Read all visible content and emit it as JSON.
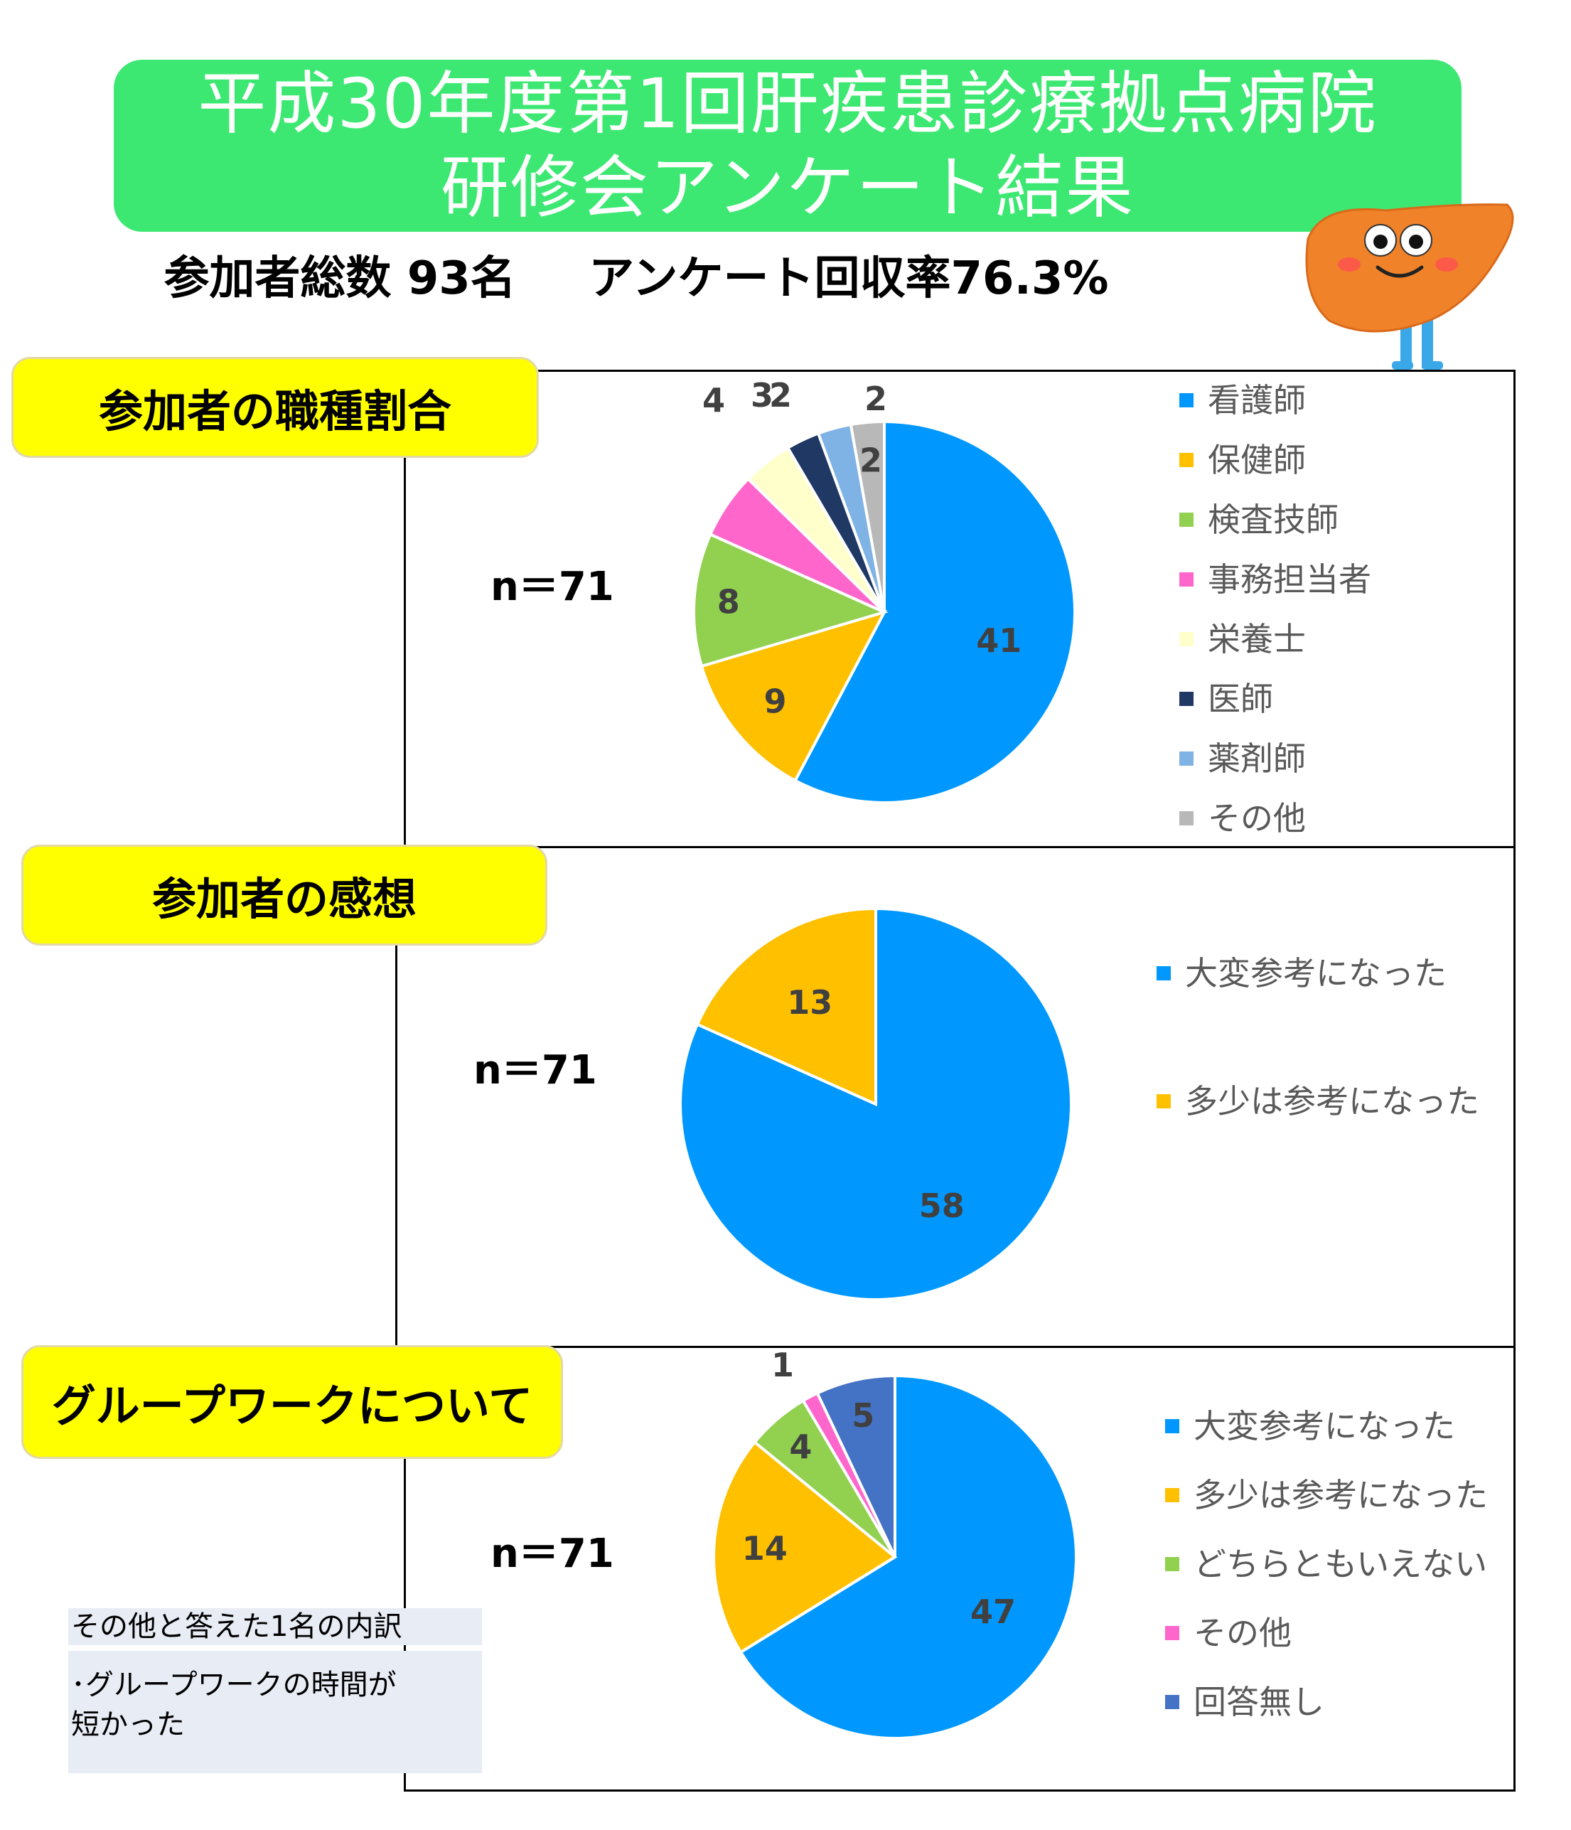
{
  "header": {
    "title_line1": "平成30年度第1回肝疾患診療拠点病院",
    "title_line2": "研修会アンケート結果",
    "participants": "参加者総数 93名",
    "response_rate": "アンケート回収率76.3%"
  },
  "sections": [
    {
      "label": "参加者の職種割合",
      "n": "n＝71"
    },
    {
      "label": "参加者の感想",
      "n": "n＝71"
    },
    {
      "label": "グループワークについて",
      "n": "n＝71"
    }
  ],
  "note": {
    "heading": "その他と答えた1名の内訳",
    "line1": "･グループワークの時間が",
    "line2": "短かった"
  },
  "chart_data": [
    {
      "type": "pie",
      "title": "参加者の職種割合",
      "categories": [
        "看護師",
        "保健師",
        "検査技師",
        "事務担当者",
        "栄養士",
        "医師",
        "薬剤師",
        "その他"
      ],
      "values": [
        41,
        9,
        8,
        4,
        3,
        2,
        2,
        2
      ],
      "value_labels": [
        "41",
        "9",
        "8",
        "4",
        "3",
        "2",
        "2",
        "2"
      ],
      "colors": [
        "#0098ff",
        "#ffc000",
        "#92d050",
        "#ff66cc",
        "#ffffcc",
        "#1f3864",
        "#7fb2e5",
        "#b8b8b8"
      ],
      "legend": "right"
    },
    {
      "type": "pie",
      "title": "参加者の感想",
      "categories": [
        "大変参考になった",
        "多少は参考になった"
      ],
      "values": [
        58,
        13
      ],
      "value_labels": [
        "58",
        "13"
      ],
      "colors": [
        "#0098ff",
        "#ffc000"
      ],
      "legend": "right"
    },
    {
      "type": "pie",
      "title": "グループワークについて",
      "categories": [
        "大変参考になった",
        "多少は参考になった",
        "どちらともいえない",
        "その他",
        "回答無し"
      ],
      "values": [
        47,
        14,
        4,
        1,
        5
      ],
      "value_labels": [
        "47",
        "14",
        "4",
        "1",
        "5"
      ],
      "colors": [
        "#0098ff",
        "#ffc000",
        "#92d050",
        "#ff66cc",
        "#4472c4"
      ],
      "legend": "right"
    }
  ]
}
